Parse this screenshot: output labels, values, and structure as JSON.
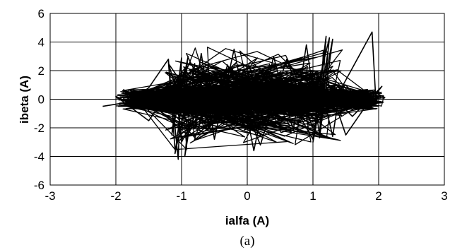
{
  "chart_data": {
    "type": "line",
    "title": "",
    "xlabel": "ialfa (A)",
    "ylabel": "ibeta (A)",
    "xlim": [
      -3,
      3
    ],
    "ylim": [
      -6,
      6
    ],
    "x_ticks": [
      "-3",
      "-2",
      "-1",
      "0",
      "1",
      "2",
      "3"
    ],
    "y_ticks": [
      "6",
      "4",
      "2",
      "0",
      "-2",
      "-4",
      "-6"
    ],
    "grid": true,
    "legend": "none",
    "line_color": "#000000",
    "series": [
      {
        "x": [
          -2.2,
          -1.8,
          -1.5,
          -1.2,
          -1.1,
          -1.2,
          -1.05,
          -1.0,
          -1.15,
          -0.9,
          -1.1,
          -0.8,
          -0.95,
          -0.7,
          -0.5,
          -0.2,
          0.1,
          0.4,
          0.7,
          0.9,
          1.1,
          1.2,
          1.0,
          1.3,
          1.1,
          1.25,
          1.0,
          1.5,
          1.8,
          2.05,
          1.6,
          1.2,
          0.8,
          0.4,
          0.0,
          -0.4,
          -0.8,
          -1.2,
          -1.6,
          -2.0,
          -1.5,
          -1.0,
          -0.6,
          -0.3,
          0.2,
          0.6,
          1.0,
          1.4,
          1.9,
          1.95,
          1.5,
          1.2,
          1.0,
          0.5,
          0.0,
          -0.5,
          -1.0,
          -1.1,
          -0.9,
          -1.2,
          -0.6,
          0.0,
          0.5,
          1.1,
          1.3,
          1.4,
          1.9,
          2.1
        ],
        "y": [
          -0.5,
          -0.2,
          0.8,
          2.8,
          -3.5,
          2.6,
          -4.2,
          2.9,
          -2.5,
          3.0,
          -3.8,
          2.5,
          -4.0,
          3.2,
          -2.8,
          3.5,
          -3.6,
          3.0,
          -2.2,
          3.8,
          -2.5,
          4.4,
          -3.0,
          4.2,
          -2.7,
          4.3,
          -0.5,
          1.0,
          -0.6,
          0.9,
          -1.2,
          0.7,
          -0.3,
          0.5,
          -0.4,
          0.6,
          -1.0,
          0.8,
          -0.7,
          0.2,
          -1.5,
          1.8,
          -2.2,
          2.4,
          -3.2,
          2.8,
          -2.0,
          0.5,
          4.7,
          0.5,
          -2.5,
          1.6,
          -2.8,
          1.2,
          -1.0,
          1.5,
          -3.0,
          1.2,
          -2.0,
          2.5,
          -1.5,
          0.8,
          -0.9,
          1.4,
          -2.6,
          0.3,
          0.6,
          0.1
        ]
      }
    ]
  },
  "caption": "(a)"
}
